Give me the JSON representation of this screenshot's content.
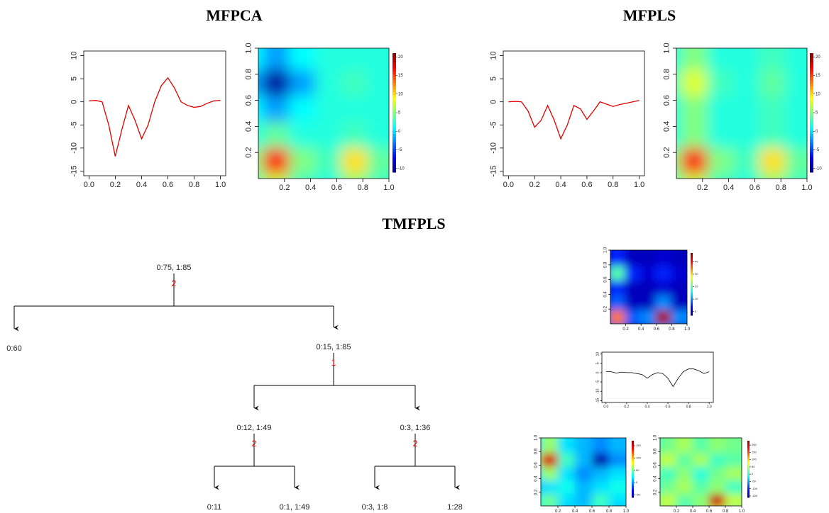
{
  "titles": [
    "MFPCA",
    "MFPLS",
    "TMFPLS"
  ],
  "chart_data": [
    {
      "type": "line",
      "color": "#e00000",
      "x": [
        0,
        0.05,
        0.1,
        0.15,
        0.2,
        0.25,
        0.3,
        0.35,
        0.4,
        0.45,
        0.5,
        0.55,
        0.6,
        0.65,
        0.7,
        0.75,
        0.8,
        0.85,
        0.9,
        0.95,
        1
      ],
      "values": [
        0.2,
        0.3,
        0,
        -5,
        -11.8,
        -6,
        -0.8,
        -4,
        -8,
        -5,
        0,
        3.5,
        5.2,
        3,
        0,
        -0.8,
        -1.2,
        -1,
        -0.3,
        0.2,
        0.3
      ],
      "xlim": [
        -0.04,
        1.04
      ],
      "ylim": [
        -16,
        11
      ],
      "xticks": [
        {
          "value": 0,
          "label": "0.0"
        },
        0.2,
        0.4,
        0.6,
        0.8,
        {
          "value": 1,
          "label": "1.0"
        }
      ],
      "yticks": [
        -15,
        -10,
        -5,
        0,
        5,
        10
      ]
    },
    {
      "type": "heatmap",
      "x": [
        0,
        0.2,
        0.4,
        0.6,
        0.8,
        1
      ],
      "y": [
        0,
        0.2,
        0.4,
        0.6,
        0.8,
        1
      ],
      "z": [
        [
          3,
          7,
          3,
          2,
          5,
          3
        ],
        [
          5,
          17,
          5,
          3,
          10,
          4
        ],
        [
          2,
          4,
          2,
          2,
          3,
          2
        ],
        [
          1,
          -2,
          1,
          2,
          2,
          2
        ],
        [
          -2,
          -10,
          -2,
          2,
          3,
          2
        ],
        [
          1,
          -2,
          1,
          2,
          2,
          2
        ]
      ],
      "zlim": [
        -11,
        21
      ],
      "zticks": [
        -10,
        -5,
        0,
        5,
        10,
        15,
        20
      ],
      "xlim": [
        0,
        1
      ],
      "ylim": [
        0,
        1
      ],
      "xticks": [
        0.2,
        0.4,
        0.6,
        0.8,
        {
          "value": 1,
          "label": "1.0"
        }
      ],
      "yticks": [
        0.2,
        0.4,
        0.6,
        0.8,
        {
          "value": 1,
          "label": "1.0"
        }
      ]
    },
    {
      "type": "line",
      "color": "#e00000",
      "x": [
        0,
        0.05,
        0.1,
        0.15,
        0.2,
        0.25,
        0.3,
        0.35,
        0.4,
        0.45,
        0.5,
        0.55,
        0.6,
        0.65,
        0.7,
        0.75,
        0.8,
        0.85,
        0.9,
        0.95,
        1
      ],
      "values": [
        0,
        0.1,
        0,
        -2,
        -5.5,
        -4,
        -0.8,
        -4,
        -8,
        -5,
        -0.8,
        -1.5,
        -3.8,
        -2,
        0,
        -0.5,
        -1,
        -0.6,
        -0.3,
        0,
        0.3
      ],
      "xlim": [
        -0.04,
        1.04
      ],
      "ylim": [
        -16,
        11
      ],
      "xticks": [
        {
          "value": 0,
          "label": "0.0"
        },
        0.2,
        0.4,
        0.6,
        0.8,
        {
          "value": 1,
          "label": "1.0"
        }
      ],
      "yticks": [
        -15,
        -10,
        -5,
        0,
        5,
        10
      ]
    },
    {
      "type": "heatmap",
      "x": [
        0,
        0.2,
        0.4,
        0.6,
        0.8,
        1
      ],
      "y": [
        0,
        0.2,
        0.4,
        0.6,
        0.8,
        1
      ],
      "z": [
        [
          3,
          7,
          3,
          2,
          5,
          3
        ],
        [
          5,
          17,
          5,
          3,
          10,
          4
        ],
        [
          2,
          5,
          2,
          2,
          3,
          2
        ],
        [
          2,
          5,
          2,
          2,
          3,
          2
        ],
        [
          3,
          8,
          3,
          2,
          4,
          2
        ],
        [
          2,
          5,
          2,
          2,
          3,
          2
        ]
      ],
      "zlim": [
        -11,
        21
      ],
      "zticks": [
        -10,
        -5,
        0,
        5,
        10,
        15,
        20
      ],
      "xlim": [
        0,
        1
      ],
      "ylim": [
        0,
        1
      ],
      "xticks": [
        0.2,
        0.4,
        0.6,
        0.8,
        {
          "value": 1,
          "label": "1.0"
        }
      ],
      "yticks": [
        0.2,
        0.4,
        0.6,
        0.8,
        {
          "value": 1,
          "label": "1.0"
        }
      ]
    },
    {
      "type": "heatmap",
      "x": [
        0,
        0.2,
        0.4,
        0.6,
        0.8,
        1
      ],
      "y": [
        0,
        0.2,
        0.4,
        0.6,
        0.8,
        1
      ],
      "z": [
        [
          0,
          8,
          0,
          0,
          10,
          0
        ],
        [
          8,
          35,
          8,
          10,
          45,
          10
        ],
        [
          0,
          8,
          0,
          0,
          10,
          0
        ],
        [
          0,
          5,
          0,
          0,
          1,
          0
        ],
        [
          5,
          20,
          5,
          1,
          5,
          1
        ],
        [
          0,
          5,
          0,
          0,
          1,
          0
        ]
      ],
      "zlim": [
        -3,
        47
      ],
      "zticks": [
        0,
        10,
        20,
        30,
        40
      ],
      "xlim": [
        0,
        1
      ],
      "ylim": [
        0,
        1
      ],
      "xticks": [
        0.2,
        0.4,
        0.6,
        0.8,
        {
          "value": 1,
          "label": "1.0"
        }
      ],
      "yticks": [
        0.2,
        0.4,
        0.6,
        0.8,
        {
          "value": 1,
          "label": "1.0"
        }
      ]
    },
    {
      "type": "line",
      "color": "#000000",
      "x": [
        0,
        0.05,
        0.1,
        0.15,
        0.2,
        0.25,
        0.3,
        0.35,
        0.4,
        0.45,
        0.5,
        0.55,
        0.6,
        0.65,
        0.7,
        0.75,
        0.8,
        0.85,
        0.9,
        0.95,
        1
      ],
      "values": [
        0.5,
        0.5,
        -0.2,
        0.3,
        0,
        0,
        -0.5,
        -1,
        -3,
        -1,
        0,
        -0.5,
        -3,
        -7.5,
        -3,
        0.5,
        2,
        2,
        1,
        -0.5,
        0.5
      ],
      "xlim": [
        -0.04,
        1.04
      ],
      "ylim": [
        -16,
        11
      ],
      "xticks": [
        {
          "value": 0,
          "label": "0.0"
        },
        0.2,
        0.4,
        0.6,
        0.8,
        {
          "value": 1,
          "label": "1.0"
        }
      ],
      "yticks": [
        -15,
        -10,
        -5,
        0,
        5,
        10
      ]
    },
    {
      "type": "heatmap",
      "x": [
        0,
        0.2,
        0.4,
        0.6,
        0.8,
        1
      ],
      "y": [
        0,
        0.2,
        0.4,
        0.6,
        0.8,
        1
      ],
      "z": [
        [
          20,
          40,
          10,
          20,
          30,
          10
        ],
        [
          30,
          50,
          20,
          10,
          40,
          20
        ],
        [
          10,
          20,
          30,
          10,
          20,
          30
        ],
        [
          20,
          60,
          20,
          0,
          10,
          20
        ],
        [
          60,
          150,
          40,
          10,
          -50,
          0
        ],
        [
          20,
          60,
          20,
          10,
          0,
          10
        ]
      ],
      "zlim": [
        -60,
        170
      ],
      "zticks": [
        -50,
        0,
        50,
        100,
        150
      ],
      "xlim": [
        0,
        1
      ],
      "ylim": [
        0,
        1
      ],
      "xticks": [
        0.2,
        0.4,
        0.6,
        0.8,
        {
          "value": 1,
          "label": "1.0"
        }
      ],
      "yticks": [
        0.2,
        0.4,
        0.6,
        0.8,
        {
          "value": 1,
          "label": "1.0"
        }
      ]
    },
    {
      "type": "heatmap",
      "x": [
        0,
        0.2,
        0.4,
        0.6,
        0.8,
        1
      ],
      "y": [
        0,
        0.2,
        0.4,
        0.6,
        0.8,
        1
      ],
      "z": [
        [
          20,
          40,
          0,
          30,
          60,
          20
        ],
        [
          40,
          60,
          20,
          40,
          200,
          60
        ],
        [
          0,
          30,
          50,
          20,
          40,
          10
        ],
        [
          30,
          10,
          40,
          0,
          30,
          50
        ],
        [
          40,
          60,
          20,
          50,
          10,
          20
        ],
        [
          10,
          30,
          50,
          20,
          40,
          30
        ]
      ],
      "zlim": [
        -160,
        230
      ],
      "zticks": [
        -150,
        -100,
        -50,
        0,
        50,
        100,
        150,
        200
      ],
      "xlim": [
        0,
        1
      ],
      "ylim": [
        0,
        1
      ],
      "xticks": [
        0.2,
        0.4,
        0.6,
        0.8,
        {
          "value": 1,
          "label": "1.0"
        }
      ],
      "yticks": [
        0.2,
        0.4,
        0.6,
        0.8,
        {
          "value": 1,
          "label": "1.0"
        }
      ]
    }
  ],
  "tree": {
    "nodes": [
      {
        "label": "0:75, 1:85",
        "split": "2"
      },
      {
        "label": "0:60"
      },
      {
        "label": "0:15, 1:85",
        "split": "1"
      },
      {
        "label": "0:12, 1:49",
        "split": "2"
      },
      {
        "label": "0:3, 1:36",
        "split": "2"
      },
      {
        "label": "0:11"
      },
      {
        "label": "0:1, 1:49"
      },
      {
        "label": "0:3, 1:8"
      },
      {
        "label": "1:28"
      }
    ]
  }
}
